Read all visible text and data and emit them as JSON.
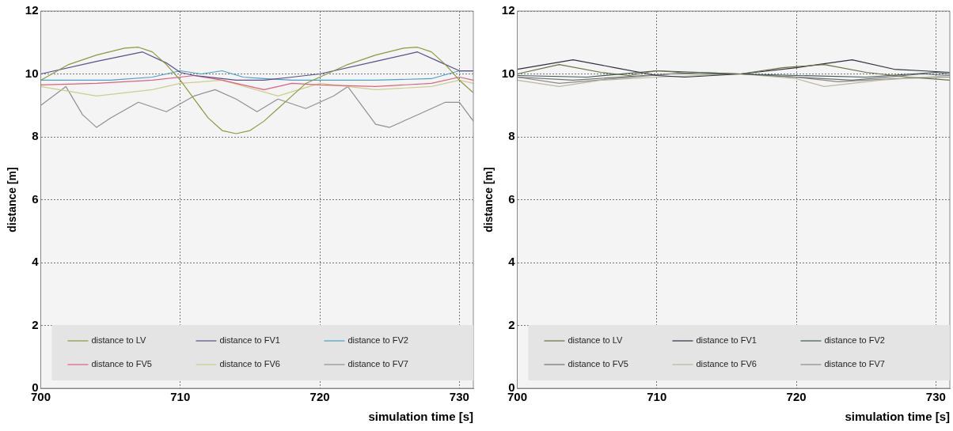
{
  "chart_data": [
    {
      "type": "line",
      "xlabel": "simulation time [s]",
      "ylabel": "distance [m]",
      "xlim": [
        700,
        731
      ],
      "xticks": [
        700,
        710,
        720,
        730
      ],
      "ylim": [
        0,
        12
      ],
      "yticks": [
        0,
        2,
        4,
        6,
        8,
        10,
        12
      ],
      "grid": true,
      "legend": "bottom",
      "series": [
        {
          "name": "distance to LV",
          "color": "#8c9a3c",
          "x": [
            700,
            702,
            704,
            706,
            707,
            708,
            709,
            710,
            711,
            712,
            713,
            714,
            715,
            716,
            717,
            718,
            719,
            720,
            722,
            724,
            726,
            727,
            728,
            729,
            730,
            731
          ],
          "values": [
            9.8,
            10.3,
            10.6,
            10.82,
            10.85,
            10.7,
            10.3,
            9.8,
            9.2,
            8.6,
            8.2,
            8.1,
            8.2,
            8.5,
            8.9,
            9.3,
            9.7,
            9.9,
            10.3,
            10.6,
            10.82,
            10.85,
            10.7,
            10.3,
            9.8,
            9.4
          ]
        },
        {
          "name": "distance to FV1",
          "color": "#5a4f8c",
          "x": [
            700,
            704,
            707.3,
            709,
            710,
            711,
            714,
            716,
            718,
            720,
            724,
            727,
            728.5,
            730,
            731
          ],
          "values": [
            10.0,
            10.4,
            10.7,
            10.35,
            10.05,
            9.95,
            9.8,
            9.8,
            9.9,
            10.0,
            10.4,
            10.7,
            10.4,
            10.1,
            10.1
          ]
        },
        {
          "name": "distance to FV2",
          "color": "#4aa0c8",
          "x": [
            700,
            705,
            708,
            710,
            711.5,
            713,
            714.5,
            716,
            718,
            720,
            724,
            728,
            730,
            731
          ],
          "values": [
            9.8,
            9.8,
            9.9,
            10.1,
            10.0,
            10.1,
            9.9,
            9.85,
            9.8,
            9.8,
            9.8,
            9.85,
            10.1,
            10.1
          ]
        },
        {
          "name": "distance to FV5",
          "color": "#e06080",
          "x": [
            700,
            704,
            708,
            711,
            713,
            716,
            718,
            720,
            724,
            728,
            730,
            731
          ],
          "values": [
            9.65,
            9.7,
            9.8,
            9.95,
            9.8,
            9.5,
            9.7,
            9.65,
            9.6,
            9.7,
            9.9,
            9.8
          ]
        },
        {
          "name": "distance to FV6",
          "color": "#c8d08c",
          "x": [
            700,
            704,
            708,
            710,
            713,
            717,
            720,
            724,
            728,
            730,
            731
          ],
          "values": [
            9.6,
            9.3,
            9.5,
            9.7,
            9.8,
            9.3,
            9.7,
            9.5,
            9.6,
            9.8,
            9.7
          ]
        },
        {
          "name": "distance to FV7",
          "color": "#909090",
          "x": [
            700,
            701.8,
            703,
            704,
            705,
            707,
            709,
            711,
            712.5,
            714,
            715.5,
            717,
            719,
            721,
            722,
            724,
            725,
            727,
            729,
            730,
            731
          ],
          "values": [
            9.0,
            9.6,
            8.7,
            8.3,
            8.6,
            9.1,
            8.8,
            9.3,
            9.5,
            9.2,
            8.8,
            9.2,
            8.9,
            9.3,
            9.6,
            8.4,
            8.3,
            8.7,
            9.1,
            9.1,
            8.5
          ]
        }
      ]
    },
    {
      "type": "line",
      "xlabel": "simulation time [s]",
      "ylabel": "distance [m]",
      "xlim": [
        700,
        731
      ],
      "xticks": [
        700,
        710,
        720,
        730
      ],
      "ylim": [
        0,
        12
      ],
      "yticks": [
        0,
        2,
        4,
        6,
        8,
        10,
        12
      ],
      "grid": true,
      "legend": "bottom",
      "series": [
        {
          "name": "distance to LV",
          "color": "#6b7040",
          "x": [
            700,
            703,
            706,
            708,
            710,
            713,
            716,
            719,
            722,
            725,
            728,
            731
          ],
          "values": [
            10.0,
            10.3,
            10.05,
            9.95,
            10.1,
            10.0,
            10.0,
            10.2,
            10.3,
            10.05,
            9.9,
            9.8
          ]
        },
        {
          "name": "distance to FV1",
          "color": "#303040",
          "x": [
            700,
            704,
            707,
            710,
            712,
            714,
            716,
            720,
            724,
            727,
            729,
            731
          ],
          "values": [
            10.15,
            10.45,
            10.2,
            9.95,
            9.9,
            9.95,
            10.0,
            10.2,
            10.45,
            10.15,
            10.1,
            10.05
          ]
        },
        {
          "name": "distance to FV2",
          "color": "#405858",
          "x": [
            700,
            705,
            710,
            716,
            720,
            725,
            730,
            731
          ],
          "values": [
            9.95,
            9.9,
            10.1,
            10.0,
            9.95,
            9.9,
            10.05,
            10.0
          ]
        },
        {
          "name": "distance to FV5",
          "color": "#707070",
          "x": [
            700,
            704,
            709,
            713,
            716,
            720,
            724,
            729,
            731
          ],
          "values": [
            9.9,
            9.8,
            9.95,
            10.05,
            10.0,
            9.9,
            9.8,
            10.0,
            9.95
          ]
        },
        {
          "name": "distance to FV6",
          "color": "#b8b8a0",
          "x": [
            700,
            703,
            706,
            710,
            716,
            720,
            722,
            726,
            731
          ],
          "values": [
            9.8,
            9.6,
            9.8,
            9.9,
            10.0,
            9.85,
            9.6,
            9.8,
            9.95
          ]
        },
        {
          "name": "distance to FV7",
          "color": "#8a8a8a",
          "x": [
            700,
            703,
            707,
            711,
            716,
            720,
            723,
            727,
            731
          ],
          "values": [
            9.9,
            9.7,
            9.85,
            10.0,
            10.0,
            9.9,
            9.75,
            9.85,
            9.9
          ]
        }
      ]
    }
  ]
}
